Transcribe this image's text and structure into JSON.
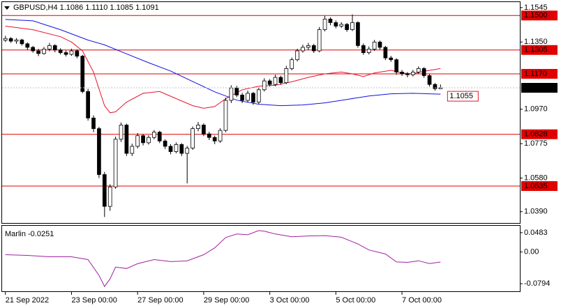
{
  "chart_data": [
    {
      "type": "candlestick",
      "title": "GBPUSD,H4  1.1086 1.1110 1.1085 1.1091",
      "xlim": [
        -0.6,
        93.4
      ],
      "xticks": [
        {
          "value": 0,
          "label": "21 Sep 2022"
        },
        {
          "value": 12,
          "label": "23 Sep 00:00"
        },
        {
          "value": 24,
          "label": "27 Sep 00:00"
        },
        {
          "value": 36,
          "label": "29 Sep 00:00"
        },
        {
          "value": 48,
          "label": "3 Oct 00:00"
        },
        {
          "value": 60,
          "label": "5 Oct 00:00"
        },
        {
          "value": 72,
          "label": "7 Oct 00:00"
        }
      ],
      "ylim": [
        1.0326,
        1.1576
      ],
      "yticks": [
        {
          "value": 1.1545,
          "label": "1.1545"
        },
        {
          "value": 1.135,
          "label": "1.1350"
        },
        {
          "value": 1.097,
          "label": "1.0970"
        },
        {
          "value": 1.0775,
          "label": "1.0775"
        },
        {
          "value": 1.058,
          "label": "1.0580"
        },
        {
          "value": 1.039,
          "label": "1.0390"
        }
      ],
      "levels": [
        {
          "value": 1.15,
          "label": "1.1500"
        },
        {
          "value": 1.1305,
          "label": "1.1305"
        },
        {
          "value": 1.117,
          "label": "1.1170"
        },
        {
          "value": 1.0828,
          "label": "1.0828"
        },
        {
          "value": 1.0535,
          "label": "1.0535"
        }
      ],
      "level_color": "#e00000",
      "open": [
        1.136,
        1.137,
        1.1355,
        1.1362,
        1.134,
        1.132,
        1.13,
        1.1285,
        1.131,
        1.133,
        1.1305,
        1.129,
        1.128,
        1.13,
        1.127,
        1.107,
        1.092,
        1.086,
        1.06,
        1.042,
        1.053,
        1.08,
        1.088,
        1.072,
        1.076,
        1.082,
        1.078,
        1.081,
        1.084,
        1.079,
        1.076,
        1.073,
        1.077,
        1.072,
        1.075,
        1.086,
        1.088,
        1.083,
        1.081,
        1.079,
        1.085,
        1.102,
        1.109,
        1.105,
        1.102,
        1.106,
        1.101,
        1.108,
        1.113,
        1.111,
        1.115,
        1.112,
        1.12,
        1.125,
        1.13,
        1.132,
        1.133,
        1.13,
        1.142,
        1.148,
        1.146,
        1.144,
        1.145,
        1.142,
        1.146,
        1.133,
        1.129,
        1.131,
        1.135,
        1.132,
        1.126,
        1.125,
        1.118,
        1.117,
        1.1165,
        1.118,
        1.12,
        1.116,
        1.111,
        1.1086
      ],
      "high": [
        1.1385,
        1.1378,
        1.1372,
        1.1368,
        1.1348,
        1.1328,
        1.1312,
        1.1322,
        1.1345,
        1.1338,
        1.1315,
        1.1302,
        1.1312,
        1.1308,
        1.1278,
        1.1085,
        1.0935,
        1.087,
        1.0615,
        1.0545,
        1.0815,
        1.0895,
        1.0888,
        1.0775,
        1.0835,
        1.083,
        1.0822,
        1.0852,
        1.0848,
        1.08,
        1.0772,
        1.0782,
        1.0778,
        1.0762,
        1.0872,
        1.0898,
        1.089,
        1.0842,
        1.082,
        1.0862,
        1.1035,
        1.1105,
        1.1102,
        1.1062,
        1.1075,
        1.1068,
        1.1092,
        1.1145,
        1.114,
        1.1165,
        1.116,
        1.1215,
        1.1262,
        1.1312,
        1.1335,
        1.1345,
        1.134,
        1.1435,
        1.1498,
        1.149,
        1.1472,
        1.1462,
        1.1458,
        1.1506,
        1.1468,
        1.1342,
        1.1325,
        1.1362,
        1.1358,
        1.1328,
        1.1272,
        1.1258,
        1.1192,
        1.118,
        1.1192,
        1.1212,
        1.1208,
        1.1168,
        1.1118,
        1.111
      ],
      "low": [
        1.135,
        1.1345,
        1.134,
        1.133,
        1.1305,
        1.129,
        1.127,
        1.1278,
        1.1298,
        1.1292,
        1.128,
        1.1268,
        1.1272,
        1.1258,
        1.106,
        1.0905,
        1.084,
        1.058,
        1.036,
        1.0395,
        1.052,
        1.0785,
        1.0705,
        1.0705,
        1.0748,
        1.0765,
        1.077,
        1.08,
        1.0778,
        1.0745,
        1.0715,
        1.072,
        1.0705,
        1.055,
        1.074,
        1.0845,
        1.0818,
        1.0795,
        1.0772,
        1.078,
        1.084,
        1.1005,
        1.1038,
        1.1005,
        1.101,
        1.0995,
        1.1,
        1.107,
        1.1098,
        1.11,
        1.1108,
        1.1112,
        1.119,
        1.124,
        1.129,
        1.1305,
        1.1288,
        1.1292,
        1.141,
        1.1445,
        1.1428,
        1.143,
        1.1408,
        1.1412,
        1.1318,
        1.1278,
        1.128,
        1.13,
        1.1308,
        1.1248,
        1.1238,
        1.1165,
        1.1158,
        1.115,
        1.1155,
        1.117,
        1.1148,
        1.1098,
        1.1075,
        1.1085
      ],
      "close": [
        1.137,
        1.1355,
        1.1362,
        1.134,
        1.132,
        1.13,
        1.1285,
        1.131,
        1.133,
        1.1305,
        1.129,
        1.128,
        1.13,
        1.127,
        1.107,
        1.092,
        1.086,
        1.06,
        1.042,
        1.053,
        1.08,
        1.088,
        1.072,
        1.076,
        1.082,
        1.078,
        1.081,
        1.084,
        1.079,
        1.076,
        1.073,
        1.077,
        1.072,
        1.075,
        1.086,
        1.088,
        1.083,
        1.081,
        1.079,
        1.085,
        1.102,
        1.109,
        1.105,
        1.102,
        1.106,
        1.101,
        1.108,
        1.113,
        1.111,
        1.115,
        1.112,
        1.12,
        1.125,
        1.13,
        1.132,
        1.133,
        1.13,
        1.142,
        1.148,
        1.146,
        1.144,
        1.145,
        1.142,
        1.146,
        1.133,
        1.129,
        1.131,
        1.135,
        1.132,
        1.126,
        1.125,
        1.118,
        1.117,
        1.1165,
        1.118,
        1.12,
        1.116,
        1.111,
        1.1086,
        1.1091
      ],
      "series": [
        {
          "color": "#e8112d",
          "x": [
            0,
            5,
            10,
            12,
            14,
            16,
            18,
            19,
            20,
            22,
            25,
            28,
            31,
            34,
            36,
            38,
            40,
            43,
            46,
            49,
            52,
            55,
            58,
            61,
            63,
            65,
            67,
            70,
            72,
            74,
            76,
            79
          ],
          "values": [
            1.144,
            1.142,
            1.138,
            1.135,
            1.13,
            1.118,
            1.099,
            1.095,
            1.0955,
            1.101,
            1.106,
            1.107,
            1.103,
            1.099,
            1.0975,
            1.0985,
            1.103,
            1.108,
            1.11,
            1.1105,
            1.1125,
            1.115,
            1.117,
            1.118,
            1.117,
            1.1155,
            1.1175,
            1.119,
            1.1175,
            1.117,
            1.1185,
            1.12
          ]
        },
        {
          "color": "#1010e0",
          "x": [
            0,
            5,
            10,
            15,
            18,
            22,
            26,
            30,
            34,
            38,
            42,
            46,
            50,
            54,
            58,
            62,
            66,
            70,
            74,
            79
          ],
          "values": [
            1.1478,
            1.147,
            1.142,
            1.1361,
            1.1334,
            1.1283,
            1.1233,
            1.1186,
            1.1127,
            1.1068,
            1.1021,
            1.0998,
            1.099,
            1.0994,
            1.1006,
            1.1025,
            1.1045,
            1.1057,
            1.106,
            1.1055
          ]
        }
      ],
      "bull_color": "#ffffff",
      "bear_color": "#000000"
    },
    {
      "type": "line",
      "title": "Marlin -0.0251",
      "xlim": [
        -0.6,
        93.4
      ],
      "ylim": [
        -0.0983,
        0.0655
      ],
      "yticks": [
        {
          "value": 0.0483,
          "label": "0.0483"
        },
        {
          "value": 0,
          "label": "0.00"
        },
        {
          "value": -0.0794,
          "label": "-0.0794"
        }
      ],
      "series": [
        {
          "color": "#a020a0",
          "x": [
            0,
            4,
            8,
            12,
            15,
            17,
            18,
            19,
            20,
            22,
            24,
            27,
            30,
            33,
            36,
            38,
            40,
            42,
            44,
            46,
            47,
            49,
            52,
            55,
            58,
            61,
            64,
            66,
            69,
            71,
            73,
            75,
            77,
            79
          ],
          "values": [
            -0.0069,
            -0.0086,
            -0.0121,
            -0.0121,
            -0.019,
            -0.0586,
            -0.0862,
            -0.0672,
            -0.0379,
            -0.0414,
            -0.0293,
            -0.019,
            -0.0241,
            -0.0224,
            -0.0069,
            0.0103,
            0.0362,
            0.045,
            0.0431,
            0.0534,
            0.052,
            0.045,
            0.038,
            0.04,
            0.041,
            0.037,
            0.02,
            0.005,
            -0.005,
            -0.025,
            -0.026,
            -0.022,
            -0.029,
            -0.0251
          ]
        }
      ]
    }
  ]
}
